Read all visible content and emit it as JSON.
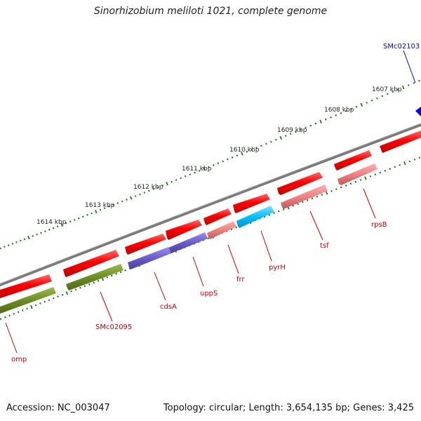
{
  "title": "Sinorhizobium meliloti 1021, complete genome",
  "accession": "Accession: NC_003047",
  "topology": "Topology: circular; Length: 3,654,135 bp; Genes: 3,425",
  "kbp_labels": [
    "1607 kbp",
    "1608 kbp",
    "1609 kbp",
    "1610 kbp",
    "1611 kbp",
    "1612 kbp",
    "1613 kbp",
    "1614 kbp"
  ],
  "gene_labels": {
    "smc02103": "SMc02103",
    "rpsB": "rpsB",
    "tsf": "tsf",
    "pyrH": "pyrH",
    "frr": "frr",
    "uppS": "uppS",
    "cdsA": "cdsA",
    "smc02095": "SMc02095",
    "omp": "omp"
  },
  "colors": {
    "gene": "#ff0000",
    "label": "#cc0000",
    "highlight_label": "#0000cc",
    "backbone": "#7a7a7a",
    "tick": "#1f7a1f",
    "olive": "#6b8e23",
    "slate": "#7b68ee",
    "salmon": "#f08080",
    "cyan": "#00bfff",
    "blue": "#0000ff"
  }
}
